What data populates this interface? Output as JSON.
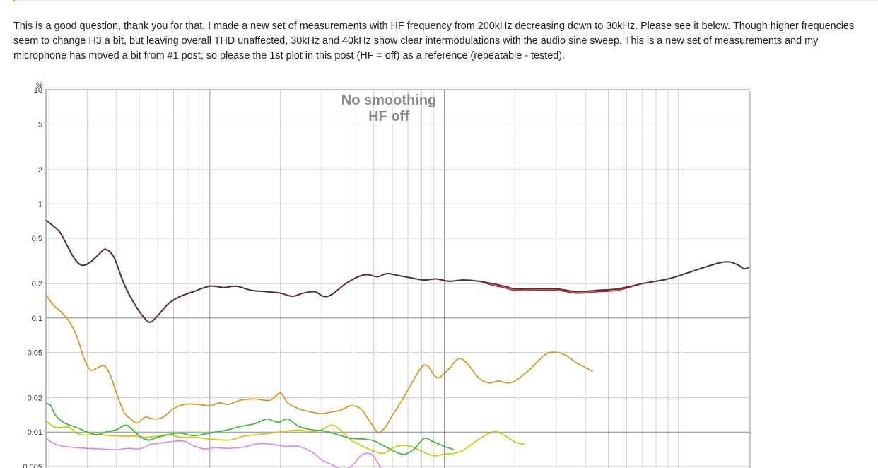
{
  "post": {
    "text": "This is a good question, thank you for that. I made a new set of measurements with HF frequency from 200kHz decreasing down to 30kHz. Please see it below. Though higher frequencies seem to change H3 a bit, but leaving overall THD unaffected, 30kHz and 40kHz show clear intermodulations with the audio sine sweep. This is a new set of measurements and my microphone has moved a bit from #1 post, so please the 1st plot in this post (HF = off) as a reference (repeatable - tested)."
  },
  "chart_data": {
    "type": "line",
    "title": "No smoothing",
    "subtitle": "HF off",
    "ylabel": "%",
    "xlabel": "",
    "y_scale": "log",
    "ylim": [
      0.005,
      10
    ],
    "y_ticks": [
      "10",
      "5",
      "2",
      "1",
      "0.5",
      "0.2",
      "0.1",
      "0.05",
      "0.02",
      "0.01",
      "0.005"
    ],
    "y_tick_values": [
      10,
      5,
      2,
      1,
      0.5,
      0.2,
      0.1,
      0.05,
      0.02,
      0.01,
      0.005
    ],
    "x_scale": "log",
    "xlim": [
      20,
      20000
    ],
    "grid": true,
    "legend": "none",
    "colors": {
      "thd": "#5a2e2e",
      "thd_alt": "#c0282c",
      "h2": "#d4961c",
      "h3": "#3cb83c",
      "h4": "#c8c814",
      "h5": "#e088e0"
    },
    "series": [
      {
        "key": "thd",
        "points": [
          [
            20,
            0.72
          ],
          [
            21.5,
            0.64
          ],
          [
            23,
            0.56
          ],
          [
            24.5,
            0.44
          ],
          [
            26.5,
            0.33
          ],
          [
            28.5,
            0.29
          ],
          [
            31,
            0.31
          ],
          [
            34,
            0.37
          ],
          [
            36,
            0.4
          ],
          [
            39,
            0.34
          ],
          [
            43,
            0.2
          ],
          [
            48,
            0.13
          ],
          [
            53,
            0.098
          ],
          [
            56,
            0.092
          ],
          [
            60,
            0.105
          ],
          [
            67,
            0.135
          ],
          [
            75,
            0.155
          ],
          [
            85,
            0.17
          ],
          [
            100,
            0.19
          ],
          [
            115,
            0.185
          ],
          [
            130,
            0.19
          ],
          [
            150,
            0.175
          ],
          [
            175,
            0.17
          ],
          [
            200,
            0.165
          ],
          [
            225,
            0.155
          ],
          [
            250,
            0.165
          ],
          [
            280,
            0.17
          ],
          [
            305,
            0.155
          ],
          [
            330,
            0.16
          ],
          [
            380,
            0.2
          ],
          [
            430,
            0.23
          ],
          [
            470,
            0.24
          ],
          [
            520,
            0.23
          ],
          [
            570,
            0.245
          ],
          [
            640,
            0.235
          ],
          [
            720,
            0.225
          ],
          [
            820,
            0.215
          ],
          [
            920,
            0.22
          ],
          [
            1050,
            0.21
          ],
          [
            1200,
            0.215
          ],
          [
            1400,
            0.21
          ],
          [
            1600,
            0.2
          ],
          [
            1800,
            0.19
          ],
          [
            2000,
            0.18
          ],
          [
            2400,
            0.18
          ],
          [
            3000,
            0.18
          ],
          [
            3700,
            0.17
          ],
          [
            4500,
            0.175
          ],
          [
            5500,
            0.18
          ],
          [
            7000,
            0.2
          ],
          [
            9000,
            0.22
          ],
          [
            11000,
            0.25
          ],
          [
            13000,
            0.28
          ],
          [
            15000,
            0.305
          ],
          [
            16500,
            0.31
          ],
          [
            18000,
            0.29
          ],
          [
            19000,
            0.27
          ],
          [
            20000,
            0.28
          ]
        ]
      },
      {
        "key": "h2",
        "points": [
          [
            20,
            0.16
          ],
          [
            21.5,
            0.13
          ],
          [
            23,
            0.115
          ],
          [
            25,
            0.095
          ],
          [
            27,
            0.07
          ],
          [
            29,
            0.045
          ],
          [
            31,
            0.035
          ],
          [
            33.5,
            0.037
          ],
          [
            35.5,
            0.038
          ],
          [
            37.5,
            0.032
          ],
          [
            40,
            0.022
          ],
          [
            43,
            0.015
          ],
          [
            46,
            0.013
          ],
          [
            49,
            0.012
          ],
          [
            53,
            0.0135
          ],
          [
            58,
            0.013
          ],
          [
            63,
            0.0135
          ],
          [
            70,
            0.016
          ],
          [
            78,
            0.0175
          ],
          [
            88,
            0.0175
          ],
          [
            100,
            0.017
          ],
          [
            110,
            0.018
          ],
          [
            120,
            0.0175
          ],
          [
            135,
            0.019
          ],
          [
            155,
            0.0195
          ],
          [
            180,
            0.019
          ],
          [
            200,
            0.022
          ],
          [
            215,
            0.018
          ],
          [
            240,
            0.016
          ],
          [
            270,
            0.015
          ],
          [
            300,
            0.0145
          ],
          [
            330,
            0.015
          ],
          [
            360,
            0.0155
          ],
          [
            400,
            0.017
          ],
          [
            440,
            0.016
          ],
          [
            480,
            0.0125
          ],
          [
            520,
            0.01
          ],
          [
            560,
            0.011
          ],
          [
            600,
            0.014
          ],
          [
            650,
            0.018
          ],
          [
            720,
            0.026
          ],
          [
            800,
            0.037
          ],
          [
            850,
            0.038
          ],
          [
            900,
            0.032
          ],
          [
            950,
            0.03
          ],
          [
            1050,
            0.036
          ],
          [
            1150,
            0.044
          ],
          [
            1250,
            0.04
          ],
          [
            1400,
            0.03
          ],
          [
            1550,
            0.027
          ],
          [
            1700,
            0.028
          ],
          [
            1850,
            0.027
          ],
          [
            2000,
            0.028
          ],
          [
            2300,
            0.035
          ],
          [
            2700,
            0.048
          ],
          [
            3000,
            0.05
          ],
          [
            3300,
            0.047
          ],
          [
            3700,
            0.04
          ],
          [
            4300,
            0.034
          ]
        ]
      },
      {
        "key": "h3",
        "points": [
          [
            20,
            0.018
          ],
          [
            21,
            0.017
          ],
          [
            22,
            0.014
          ],
          [
            24,
            0.012
          ],
          [
            27,
            0.011
          ],
          [
            30,
            0.01
          ],
          [
            33,
            0.0095
          ],
          [
            36,
            0.01
          ],
          [
            40,
            0.0105
          ],
          [
            44,
            0.0115
          ],
          [
            48,
            0.01
          ],
          [
            51,
            0.009
          ],
          [
            55,
            0.0085
          ],
          [
            60,
            0.009
          ],
          [
            67,
            0.0095
          ],
          [
            75,
            0.0098
          ],
          [
            85,
            0.0093
          ],
          [
            100,
            0.0098
          ],
          [
            120,
            0.0105
          ],
          [
            135,
            0.0112
          ],
          [
            155,
            0.0118
          ],
          [
            175,
            0.013
          ],
          [
            195,
            0.0122
          ],
          [
            215,
            0.013
          ],
          [
            240,
            0.0112
          ],
          [
            270,
            0.0105
          ],
          [
            310,
            0.0102
          ],
          [
            350,
            0.0095
          ],
          [
            400,
            0.0088
          ],
          [
            450,
            0.0087
          ],
          [
            500,
            0.0084
          ],
          [
            550,
            0.0076
          ],
          [
            620,
            0.0067
          ],
          [
            680,
            0.0064
          ],
          [
            750,
            0.0072
          ],
          [
            820,
            0.0088
          ],
          [
            900,
            0.0082
          ],
          [
            1000,
            0.0075
          ],
          [
            1100,
            0.007
          ]
        ]
      },
      {
        "key": "h4",
        "points": [
          [
            20,
            0.0125
          ],
          [
            22,
            0.011
          ],
          [
            25,
            0.011
          ],
          [
            28,
            0.0095
          ],
          [
            33,
            0.0095
          ],
          [
            38,
            0.0093
          ],
          [
            43,
            0.0092
          ],
          [
            48,
            0.0092
          ],
          [
            53,
            0.009
          ],
          [
            60,
            0.0092
          ],
          [
            67,
            0.0095
          ],
          [
            75,
            0.009
          ],
          [
            85,
            0.009
          ],
          [
            100,
            0.0087
          ],
          [
            120,
            0.0085
          ],
          [
            140,
            0.0092
          ],
          [
            160,
            0.0095
          ],
          [
            185,
            0.0098
          ],
          [
            210,
            0.0102
          ],
          [
            240,
            0.0104
          ],
          [
            270,
            0.0101
          ],
          [
            300,
            0.0105
          ],
          [
            330,
            0.0115
          ],
          [
            360,
            0.0105
          ],
          [
            400,
            0.0085
          ],
          [
            450,
            0.0075
          ],
          [
            500,
            0.0068
          ],
          [
            550,
            0.0065
          ],
          [
            600,
            0.0072
          ],
          [
            650,
            0.0076
          ],
          [
            720,
            0.0075
          ],
          [
            800,
            0.0068
          ],
          [
            900,
            0.0062
          ],
          [
            1000,
            0.0064
          ],
          [
            1100,
            0.0065
          ],
          [
            1200,
            0.0069
          ],
          [
            1350,
            0.0082
          ],
          [
            1500,
            0.0094
          ],
          [
            1650,
            0.0102
          ],
          [
            1800,
            0.0094
          ],
          [
            2000,
            0.0082
          ],
          [
            2200,
            0.0078
          ]
        ]
      },
      {
        "key": "h5",
        "points": [
          [
            20,
            0.0088
          ],
          [
            22,
            0.0078
          ],
          [
            25,
            0.0074
          ],
          [
            30,
            0.0072
          ],
          [
            35,
            0.0071
          ],
          [
            40,
            0.007
          ],
          [
            45,
            0.0072
          ],
          [
            50,
            0.0071
          ],
          [
            56,
            0.0078
          ],
          [
            62,
            0.008
          ],
          [
            70,
            0.0083
          ],
          [
            78,
            0.0083
          ],
          [
            85,
            0.0076
          ],
          [
            95,
            0.0071
          ],
          [
            105,
            0.0073
          ],
          [
            120,
            0.0072
          ],
          [
            140,
            0.0074
          ],
          [
            160,
            0.0079
          ],
          [
            185,
            0.0078
          ],
          [
            210,
            0.0075
          ],
          [
            240,
            0.0075
          ],
          [
            275,
            0.0066
          ],
          [
            300,
            0.0057
          ],
          [
            330,
            0.0052
          ],
          [
            360,
            0.0048
          ],
          [
            400,
            0.005
          ],
          [
            440,
            0.0062
          ],
          [
            480,
            0.0065
          ],
          [
            510,
            0.0058
          ],
          [
            540,
            0.0047
          ]
        ]
      }
    ]
  }
}
